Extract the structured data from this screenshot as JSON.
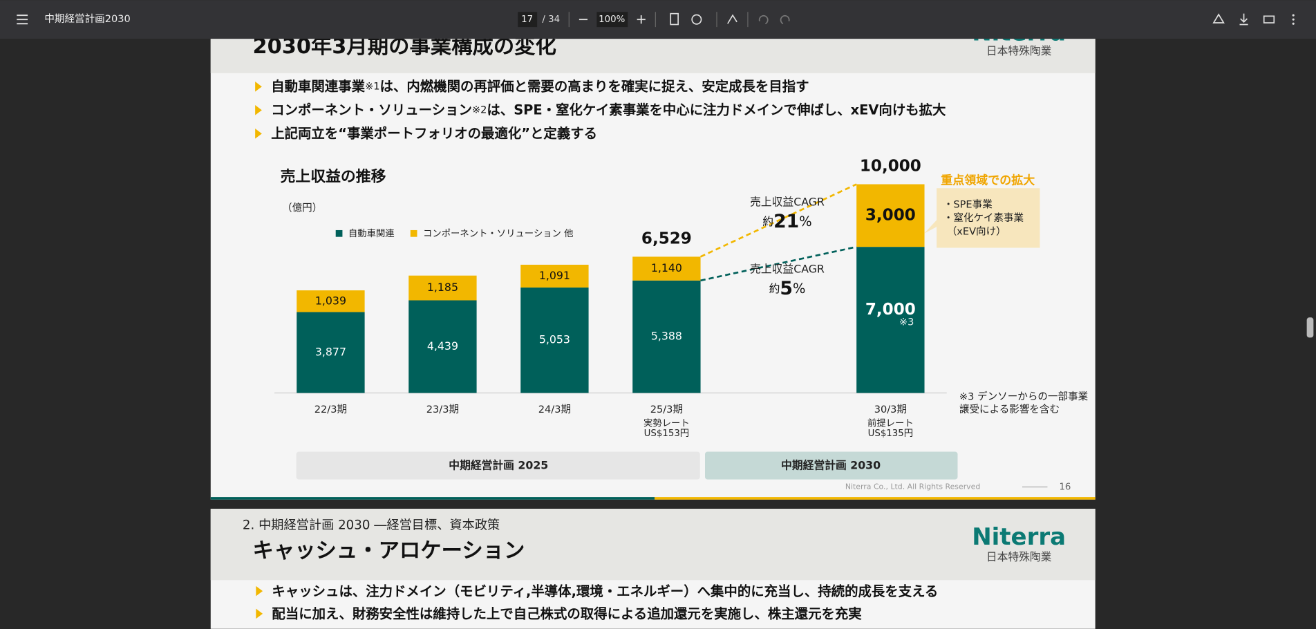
{
  "toolbar": {
    "title": "中期経営計画2030",
    "page": "17",
    "page_count": "/ 34",
    "zoom": "100%"
  },
  "slide": {
    "title": "2030年3月期の事業構成の変化",
    "logo": "Niterra",
    "logo_sub": "日本特殊陶業",
    "bullets": [
      [
        "自動車関連事業",
        "※1",
        "は、内燃機関の再評価と需要の高まりを確実に捉え、安定成長を目指す"
      ],
      [
        "コンポーネント・ソリューション",
        "※2",
        "は、SPE・窒化ケイ素事業を中心に注力ドメインで伸ばし、xEV向けも拡大"
      ],
      [
        "上記両立を“事業ポートフォリオの最適化”と定義する"
      ]
    ],
    "footer": "Niterra Co., Ltd. All Rights Reserved",
    "page_number": "16"
  },
  "chart_data": {
    "type": "stacked_bar",
    "title": "売上収益の推移",
    "unit": "（億円）",
    "categories": [
      "22/3期",
      "23/3期",
      "24/3期",
      "25/3期",
      null,
      "30/3期"
    ],
    "category_notes": [
      null,
      null,
      null,
      [
        "実勢レート",
        "US$153円"
      ],
      null,
      [
        "前提レート",
        "US$135円"
      ]
    ],
    "series": [
      {
        "name": "自動車関連",
        "color": "#00605a",
        "values": [
          3877,
          4439,
          5053,
          5388,
          null,
          7000
        ],
        "value_labels": [
          "3,877",
          "4,439",
          "5,053",
          "5,388",
          null,
          "7,000"
        ]
      },
      {
        "name": "コンポーネント・ソリューション 他",
        "color": "#f2b700",
        "values": [
          1039,
          1185,
          1091,
          1140,
          null,
          3000
        ],
        "value_labels": [
          "1,039",
          "1,185",
          "1,091",
          "1,140",
          null,
          "3,000"
        ]
      }
    ],
    "totals": [
      null,
      null,
      null,
      6529,
      null,
      10000
    ],
    "total_labels": [
      null,
      null,
      null,
      "6,529",
      null,
      "10,000"
    ],
    "ylim": [
      0,
      10000
    ],
    "legend": "top-left",
    "cagr": [
      {
        "label": "売上収益CAGR",
        "prefix": "約",
        "value": "21",
        "suffix": "%"
      },
      {
        "label": "売上収益CAGR",
        "prefix": "約",
        "value": "5",
        "suffix": "%"
      }
    ],
    "note_mark": "※3",
    "footnote": [
      "※3 デンソーからの一部事業",
      "譲受による影響を含む"
    ],
    "callout": {
      "title": "重点領域での拡大",
      "items": [
        "・SPE事業",
        "・窒化ケイ素事業",
        "（xEV向け）"
      ]
    },
    "plans": [
      "中期経営計画 2025",
      "中期経営計画 2030"
    ]
  },
  "next_slide": {
    "section": "2. 中期経営計画 2030 ―経営目標、資本政策",
    "title": "キャッシュ・アロケーション",
    "logo": "Niterra",
    "logo_sub": "日本特殊陶業",
    "bullets": [
      "キャッシュは、注力ドメイン（モビリティ,半導体,環境・エネルギー）へ集中的に充当し、持続的成長を支える",
      "配当に加え、財務安全性は維持した上で自己株式の取得による追加還元を実施し、株主還元を充実"
    ]
  }
}
